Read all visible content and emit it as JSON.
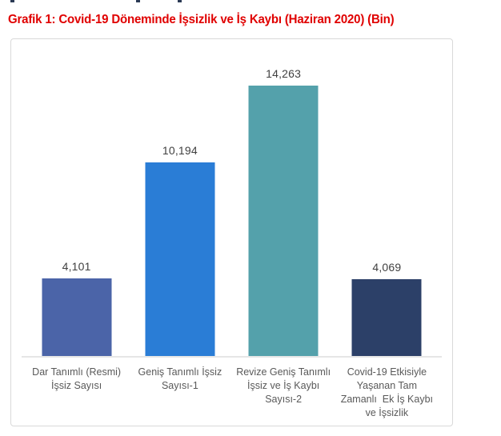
{
  "heading": {
    "text": "Grafik 1: Covid-19 Döneminde İşsizlik ve İş Kaybı (Haziran 2020) (Bin)",
    "color": "#e00000"
  },
  "chart_data": {
    "type": "bar",
    "title": "Grafik 1: Covid-19 Döneminde İşsizlik ve İş Kaybı (Haziran 2020) (Bin)",
    "unit": "Bin",
    "categories": [
      "Dar Tanımlı (Resmi)\nİşsiz Sayısı",
      "Geniş Tanımlı İşsiz\nSayısı-1",
      "Revize Geniş Tanımlı\nİşsiz ve İş Kaybı\nSayısı-2",
      "Covid-19 Etkisiyle\nYaşanan Tam\nZamanlı  Ek İş Kaybı\nve İşsizlik"
    ],
    "values": [
      4101,
      10194,
      14263,
      4069
    ],
    "value_labels": [
      "4,101",
      "10,194",
      "14,263",
      "4,069"
    ],
    "bar_colors": [
      "#4b64a8",
      "#2a7dd6",
      "#54a1ab",
      "#2c4068"
    ],
    "value_label_color": "#404040",
    "category_label_color": "#595959",
    "axis_line_color": "#e6e6e6",
    "chart_border_color": "#d9d9d9",
    "xlabel": "",
    "ylabel": "",
    "ylim": [
      0,
      15000
    ],
    "gridlines": false,
    "legend": "none",
    "data_labels": "above-bars"
  }
}
